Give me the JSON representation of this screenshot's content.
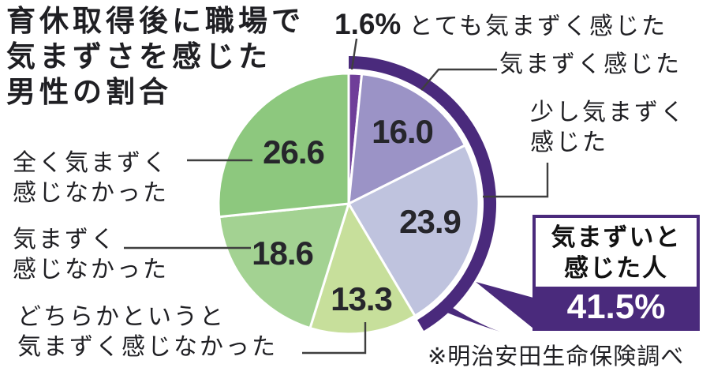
{
  "title": {
    "lines": [
      "育休取得後に職場で",
      "気まずさを感じた",
      "男性の割合"
    ]
  },
  "source": "※明治安田生命保険調べ",
  "callouts": {
    "top_pct": "1.6%",
    "top_label": "とても気まずく感じた",
    "right1": "気まずく感じた",
    "right2_line1": "少し気まずく",
    "right2_line2": "感じた",
    "left1_line1": "全く気まずく",
    "left1_line2": "感じなかった",
    "left2_line1": "気まずく",
    "left2_line2": "感じなかった",
    "bottom_line1": "どちらかというと",
    "bottom_line2": "気まずく感じなかった"
  },
  "highlight_box": {
    "line1": "気まずいと",
    "line2": "感じた人",
    "value": "41.5%"
  },
  "chart_data": {
    "type": "pie",
    "title": "育休取得後に職場で気まずさを感じた男性の割合",
    "unit": "%",
    "start_angle_deg": 0,
    "direction": "clockwise",
    "slices": [
      {
        "label": "とても気まずく感じた",
        "value": 1.6,
        "display": "1.6%",
        "color": "#6f3e99"
      },
      {
        "label": "気まずく感じた",
        "value": 16.0,
        "display": "16.0",
        "color": "#9b93c6"
      },
      {
        "label": "少し気まずく感じた",
        "value": 23.9,
        "display": "23.9",
        "color": "#bfc3de"
      },
      {
        "label": "どちらかというと気まずく感じなかった",
        "value": 13.3,
        "display": "13.3",
        "color": "#c7df9b"
      },
      {
        "label": "気まずく感じなかった",
        "value": 18.6,
        "display": "18.6",
        "color": "#a3d292"
      },
      {
        "label": "全く気まずく感じなかった",
        "value": 26.6,
        "display": "26.6",
        "color": "#8dc87e"
      }
    ],
    "highlight": {
      "label": "気まずいと感じた人",
      "value": "41.5%",
      "covers_pct": 41.5,
      "color": "#4a2a7c"
    },
    "legend_position": "callouts",
    "grid": false
  }
}
